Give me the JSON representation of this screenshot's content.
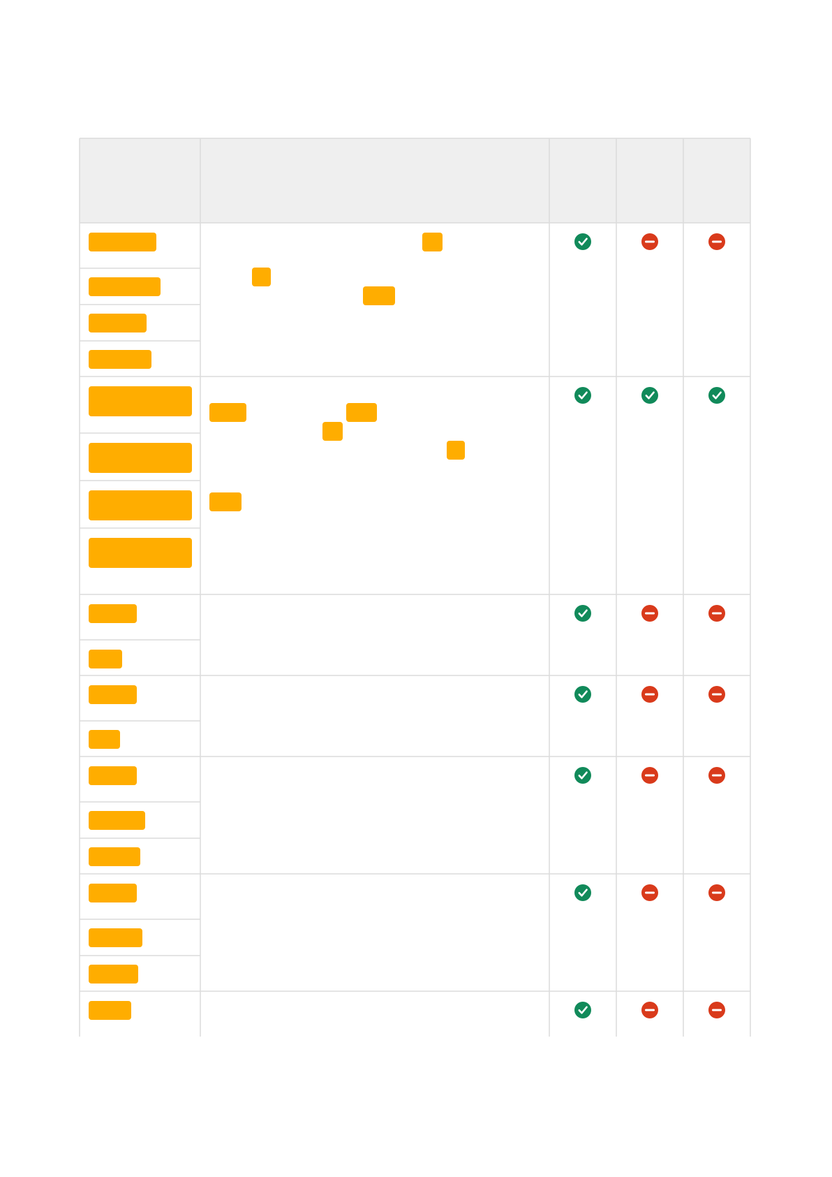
{
  "table": {
    "header_fill": "#efefef",
    "grid_color": "#dcdcdc",
    "highlight_color": "#ffad00",
    "status_colors": {
      "supported": "#118a5a",
      "unsupported": "#d93a1b"
    },
    "icon_names": {
      "supported": "check-circle-icon",
      "unsupported": "minus-circle-icon"
    },
    "rows": [
      {
        "sub_items": 4,
        "status": [
          "supported",
          "unsupported",
          "unsupported"
        ]
      },
      {
        "sub_items": 4,
        "status": [
          "supported",
          "supported",
          "supported"
        ]
      },
      {
        "sub_items": 2,
        "status": [
          "supported",
          "unsupported",
          "unsupported"
        ]
      },
      {
        "sub_items": 2,
        "status": [
          "supported",
          "unsupported",
          "unsupported"
        ]
      },
      {
        "sub_items": 3,
        "status": [
          "supported",
          "unsupported",
          "unsupported"
        ]
      },
      {
        "sub_items": 3,
        "status": [
          "supported",
          "unsupported",
          "unsupported"
        ]
      },
      {
        "sub_items": 1,
        "status": [
          "supported",
          "unsupported",
          "unsupported"
        ]
      }
    ]
  }
}
